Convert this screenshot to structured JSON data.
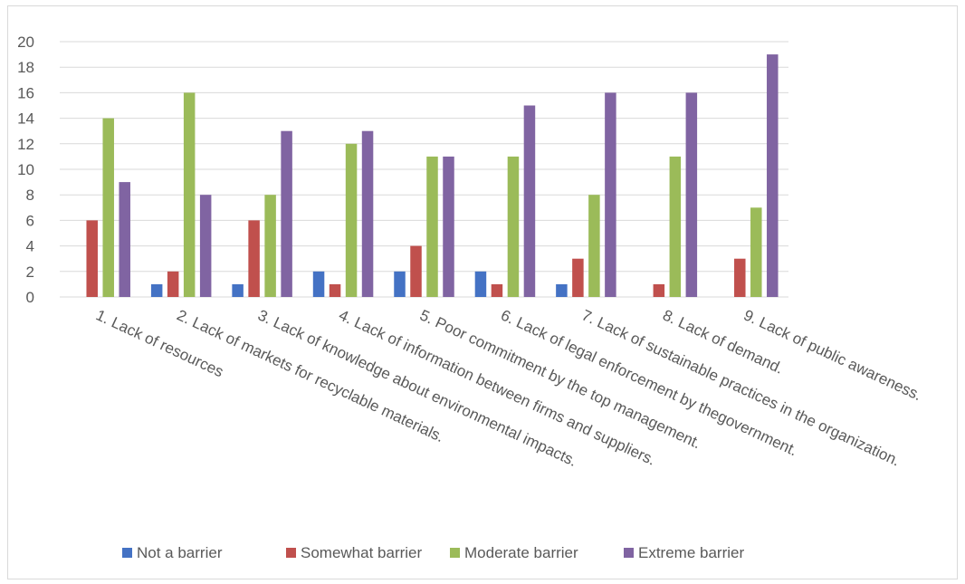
{
  "chart_data": {
    "type": "bar",
    "title": "",
    "xlabel": "",
    "ylabel": "",
    "ylim": [
      0,
      20
    ],
    "yticks": [
      0,
      2,
      4,
      6,
      8,
      10,
      12,
      14,
      16,
      18,
      20
    ],
    "grid": true,
    "legend_position": "bottom",
    "categories": [
      "1. Lack of resources",
      "2. Lack of markets for recyclable materials.",
      "3. Lack of knowledge about environmental impacts.",
      "4. Lack of information between firms and suppliers.",
      "5. Poor commitment by the top management.",
      "6. Lack of legal enforcement by thegovernment.",
      "7. Lack of sustainable practices in the organization.",
      "8. Lack of demand.",
      "9. Lack of public awareness."
    ],
    "series": [
      {
        "name": "Not a barrier",
        "color": "#4472c4",
        "values": [
          0,
          1,
          1,
          2,
          2,
          2,
          1,
          0,
          0
        ]
      },
      {
        "name": "Somewhat barrier",
        "color": "#c0504d",
        "values": [
          6,
          2,
          6,
          1,
          4,
          1,
          3,
          1,
          3
        ]
      },
      {
        "name": "Moderate barrier",
        "color": "#9bbb59",
        "values": [
          14,
          16,
          8,
          12,
          11,
          11,
          8,
          11,
          7
        ]
      },
      {
        "name": "Extreme barrier",
        "color": "#8064a2",
        "values": [
          9,
          8,
          13,
          13,
          11,
          15,
          16,
          16,
          19
        ]
      }
    ]
  }
}
